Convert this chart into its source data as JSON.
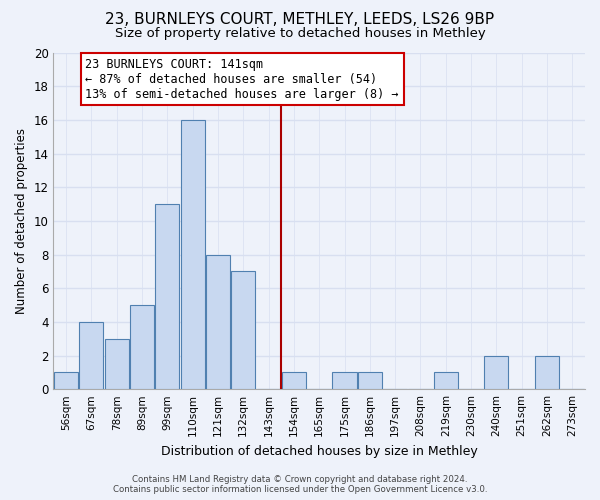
{
  "title": "23, BURNLEYS COURT, METHLEY, LEEDS, LS26 9BP",
  "subtitle": "Size of property relative to detached houses in Methley",
  "xlabel": "Distribution of detached houses by size in Methley",
  "ylabel": "Number of detached properties",
  "bin_labels": [
    "56sqm",
    "67sqm",
    "78sqm",
    "89sqm",
    "99sqm",
    "110sqm",
    "121sqm",
    "132sqm",
    "143sqm",
    "154sqm",
    "165sqm",
    "175sqm",
    "186sqm",
    "197sqm",
    "208sqm",
    "219sqm",
    "230sqm",
    "240sqm",
    "251sqm",
    "262sqm",
    "273sqm"
  ],
  "bar_heights": [
    1,
    4,
    3,
    5,
    11,
    16,
    8,
    7,
    0,
    1,
    0,
    1,
    1,
    0,
    0,
    1,
    0,
    2,
    0,
    2,
    0
  ],
  "bar_color": "#c8d8f0",
  "bar_edge_color": "#5080b0",
  "vline_pos": 8.5,
  "vline_color": "#aa0000",
  "ylim": [
    0,
    20
  ],
  "yticks": [
    0,
    2,
    4,
    6,
    8,
    10,
    12,
    14,
    16,
    18,
    20
  ],
  "annotation_title": "23 BURNLEYS COURT: 141sqm",
  "annotation_line1": "← 87% of detached houses are smaller (54)",
  "annotation_line2": "13% of semi-detached houses are larger (8) →",
  "annotation_box_color": "#ffffff",
  "annotation_box_edge_color": "#cc0000",
  "footer_line1": "Contains HM Land Registry data © Crown copyright and database right 2024.",
  "footer_line2": "Contains public sector information licensed under the Open Government Licence v3.0.",
  "background_color": "#eef2fa",
  "grid_color": "#d8dff0",
  "title_fontsize": 11,
  "subtitle_fontsize": 9.5,
  "ann_fontsize": 8.5
}
